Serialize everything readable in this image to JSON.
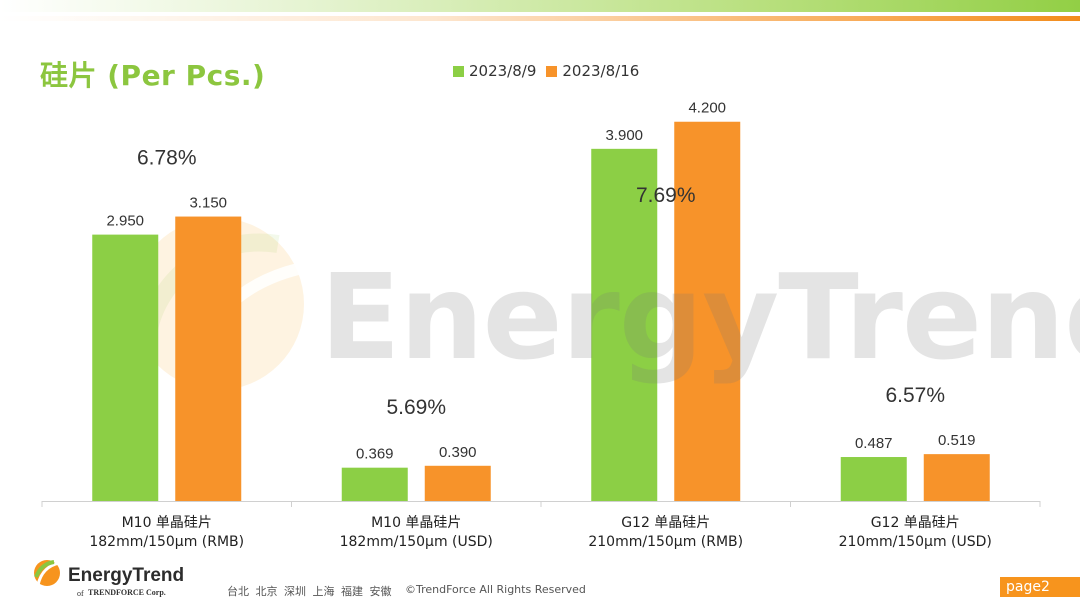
{
  "slide": {
    "title": "硅片 (Per Pcs.)"
  },
  "colors": {
    "series1": "#8ccf45",
    "series2": "#f7932a",
    "accent_green": "#8cc63f",
    "accent_orange": "#f7941d"
  },
  "watermark": {
    "text": "EnergyTrend"
  },
  "footer": {
    "brand": "EnergyTrend",
    "of_text": "of",
    "sub_brand": "TRENDFORCE Corp.",
    "cities": "台北 北京 深圳 上海 福建 安徽",
    "copyright": "©TrendForce All Rights Reserved",
    "page": "page2"
  },
  "chart_data": {
    "type": "bar",
    "title": "",
    "categories": [
      [
        "M10 单晶硅片",
        "182mm/150μm (RMB)"
      ],
      [
        "M10 单晶硅片",
        "182mm/150μm (USD)"
      ],
      [
        "G12 单晶硅片",
        "210mm/150μm  (RMB)"
      ],
      [
        "G12 单晶硅片",
        "210mm/150μm  (USD)"
      ]
    ],
    "series": [
      {
        "name": "2023/8/9",
        "values": [
          2.95,
          0.369,
          3.9,
          0.487
        ],
        "labels": [
          "2.950",
          "0.369",
          "3.900",
          "0.487"
        ]
      },
      {
        "name": "2023/8/16",
        "values": [
          3.15,
          0.39,
          4.2,
          0.519
        ],
        "labels": [
          "3.150",
          "0.390",
          "4.200",
          "0.519"
        ]
      }
    ],
    "annotations": [
      "6.78%",
      "5.69%",
      "7.69%",
      "6.57%"
    ],
    "legend_position": "top",
    "grid": false,
    "axes_visible": false
  }
}
